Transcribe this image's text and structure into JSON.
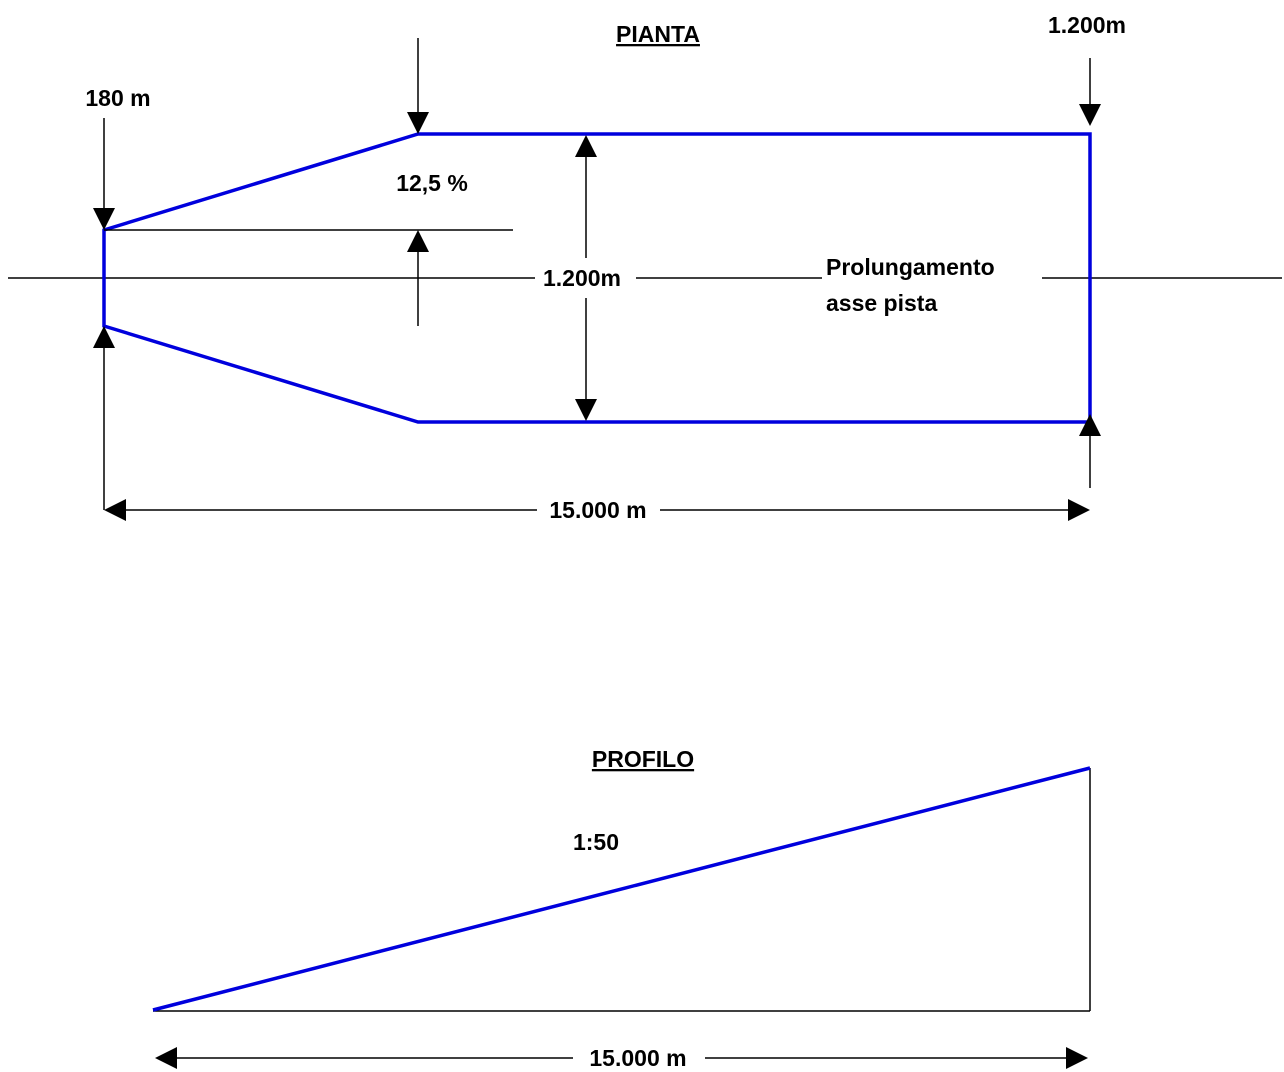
{
  "plan": {
    "title": "PIANTA",
    "label_inner_width": "180 m",
    "label_outer_width_top": "1.200m",
    "label_divergence": "12,5 %",
    "label_outer_width_mid": "1.200m",
    "label_axis_line1": "Prolungamento",
    "label_axis_line2": "asse pista",
    "label_length": "15.000 m"
  },
  "profile": {
    "title": "PROFILO",
    "label_slope": "1:50",
    "label_length": "15.000 m"
  },
  "colors": {
    "outline": "#0000dd",
    "dimension": "#000000"
  }
}
